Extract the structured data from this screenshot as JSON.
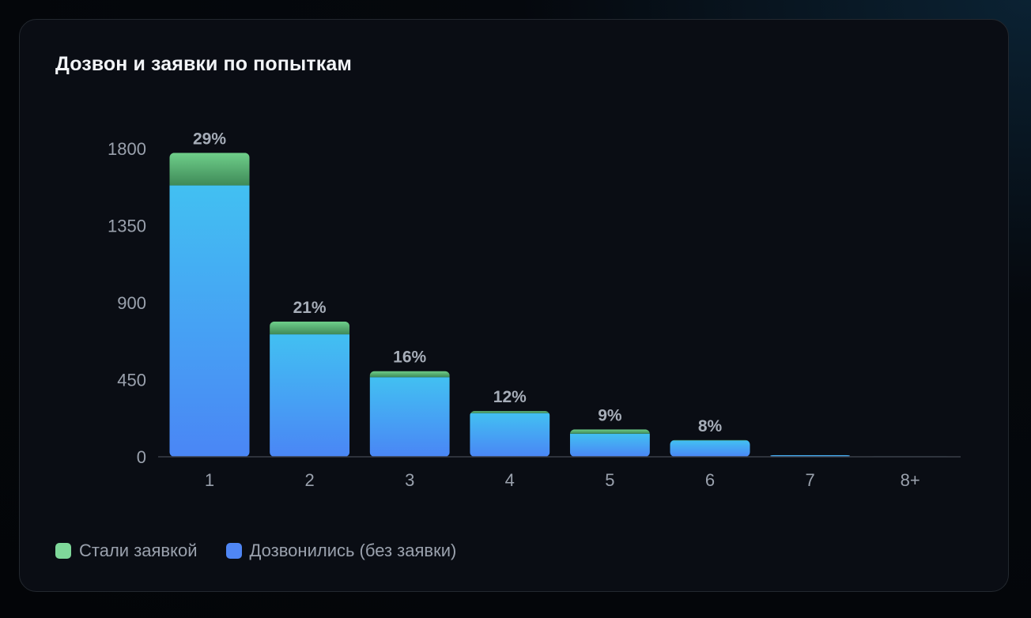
{
  "card": {
    "title": "Дозвон и заявки по попыткам"
  },
  "colors": {
    "background": "#0a0d14",
    "application": "#6fcf8a",
    "application_dark": "#3f8a58",
    "connected_top": "#42c0f2",
    "connected_bottom": "#4a86f5",
    "axis_text": "#9aa1ad",
    "pct_text": "#a6adb8"
  },
  "legend": [
    {
      "label": "Стали заявкой",
      "color": "#7fd89a"
    },
    {
      "label": "Дозвонились (без заявки)",
      "color": "#4f86f5"
    }
  ],
  "chart_data": {
    "type": "bar",
    "stacked": true,
    "title": "Дозвон и заявки по попыткам",
    "xlabel": "",
    "ylabel": "",
    "ylim": [
      0,
      1800
    ],
    "yticks": [
      0,
      450,
      900,
      1350,
      1800
    ],
    "grid": false,
    "legend_position": "bottom-left",
    "categories": [
      "1",
      "2",
      "3",
      "4",
      "5",
      "6",
      "7",
      "8+"
    ],
    "series": [
      {
        "name": "Дозвонились (без заявки)",
        "values": [
          1585,
          715,
          465,
          255,
          135,
          95,
          10,
          3
        ]
      },
      {
        "name": "Стали заявкой",
        "values": [
          190,
          75,
          35,
          12,
          25,
          3,
          0,
          0
        ]
      }
    ],
    "labels": [
      "29%",
      "21%",
      "16%",
      "12%",
      "9%",
      "8%",
      "",
      ""
    ]
  }
}
